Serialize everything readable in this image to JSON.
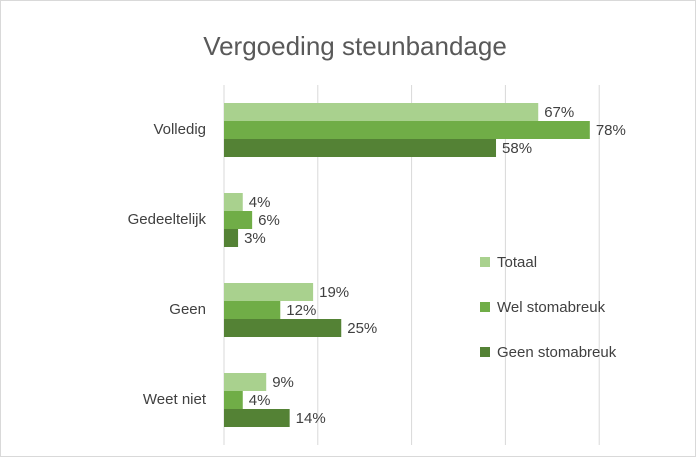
{
  "chart_data": {
    "type": "hbar",
    "title": "Vergoeding steunbandage",
    "categories": [
      "Volledig",
      "Gedeeltelijk",
      "Geen",
      "Weet niet"
    ],
    "series": [
      {
        "name": "Totaal",
        "color": "#a9d18e",
        "values": [
          67,
          4,
          19,
          9
        ],
        "value_labels": [
          "67%",
          "4%",
          "19%",
          "9%"
        ]
      },
      {
        "name": "Wel stomabreuk",
        "color": "#70ad47",
        "values": [
          78,
          6,
          12,
          4
        ],
        "value_labels": [
          "78%",
          "6%",
          "12%",
          "4%"
        ]
      },
      {
        "name": "Geen stomabreuk",
        "color": "#548235",
        "values": [
          58,
          3,
          25,
          14
        ],
        "value_labels": [
          "58%",
          "3%",
          "25%",
          "14%"
        ]
      }
    ],
    "xlim": [
      0,
      100
    ],
    "xticks": [
      0,
      20,
      40,
      60,
      80,
      100
    ],
    "grid": true,
    "legend": "right"
  }
}
